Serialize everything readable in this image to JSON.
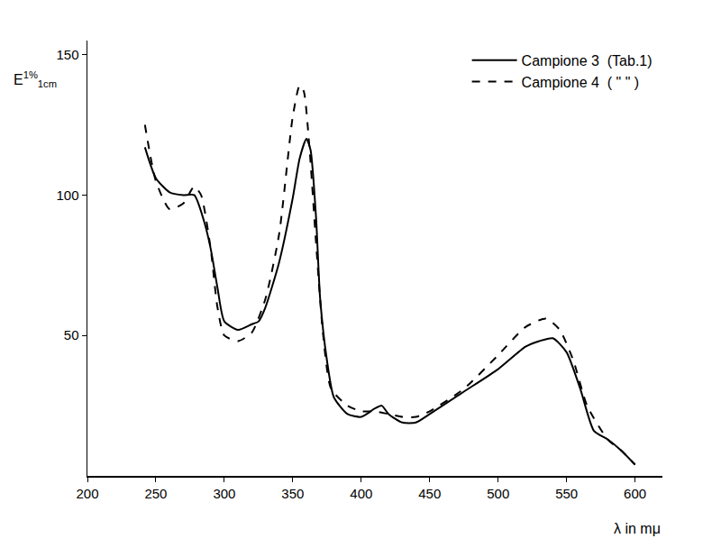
{
  "chart_data": {
    "type": "line",
    "x_label": "λ in mμ",
    "y_label": "E",
    "y_label_sup": "1%",
    "y_label_sub": "1cm",
    "xlim": [
      200,
      620
    ],
    "xticks": [
      200,
      250,
      300,
      350,
      400,
      450,
      500,
      550,
      600
    ],
    "ylim": [
      0,
      155
    ],
    "yticks": [
      50,
      100,
      150
    ],
    "grid": false,
    "legend": "upper right",
    "series": [
      {
        "name": "Campione 3  (Tab.1)",
        "color": "#000000",
        "line_style": "solid",
        "x": [
          242,
          250,
          260,
          270,
          278,
          285,
          290,
          295,
          300,
          310,
          320,
          325,
          330,
          340,
          350,
          355,
          360,
          363,
          367,
          370,
          375,
          380,
          390,
          400,
          410,
          415,
          420,
          430,
          440,
          450,
          475,
          500,
          520,
          530,
          540,
          550,
          560,
          570,
          580,
          590,
          600
        ],
        "values": [
          117,
          106,
          101,
          100,
          100,
          91,
          81,
          67,
          55,
          52,
          54,
          55,
          60,
          76,
          99,
          113,
          120,
          116,
          92,
          63,
          41,
          28,
          22,
          21,
          24,
          25,
          22,
          19,
          19,
          22,
          30,
          38,
          46,
          48,
          49,
          44,
          31,
          16,
          13,
          9,
          4
        ]
      },
      {
        "name": "Campione 4  ( \" \" )",
        "color": "#000000",
        "line_style": "dash",
        "x": [
          242,
          250,
          260,
          270,
          278,
          283,
          290,
          295,
          300,
          310,
          320,
          330,
          340,
          350,
          355,
          358,
          362,
          367,
          372,
          378,
          390,
          400,
          410,
          420,
          430,
          440,
          450,
          475,
          500,
          520,
          535,
          545,
          555,
          565,
          580,
          590,
          600
        ],
        "values": [
          125,
          105,
          95,
          97,
          103,
          100,
          81,
          60,
          50,
          48,
          51,
          63,
          86,
          128,
          139,
          137,
          118,
          83,
          51,
          31,
          25,
          23,
          23,
          22,
          21,
          21,
          23,
          31,
          43,
          53,
          56,
          52,
          41,
          25,
          13,
          9,
          4
        ]
      }
    ]
  }
}
